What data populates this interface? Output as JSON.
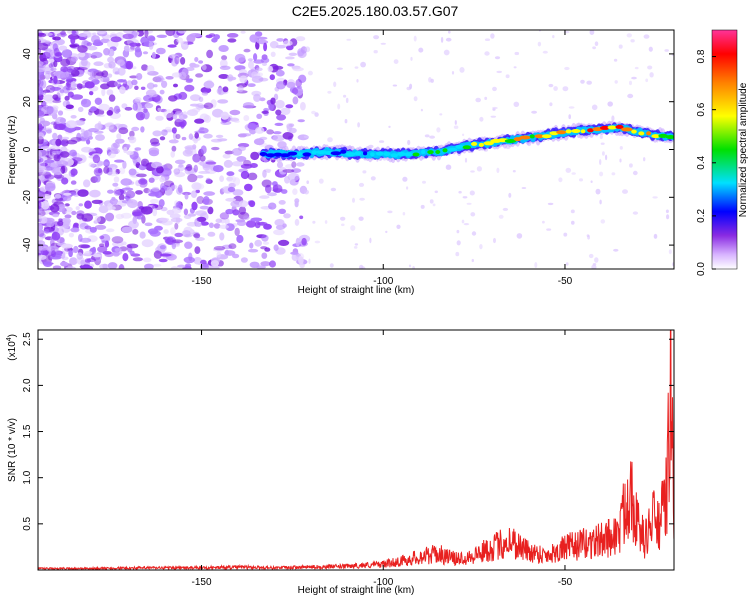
{
  "title": "C2E5.2025.180.03.57.G07",
  "chart_data": [
    {
      "type": "heatmap",
      "xlabel": "Height of straight line (km)",
      "ylabel": "Frequency (Hz)",
      "xlim": [
        -195,
        -20
      ],
      "ylim": [
        -50,
        50
      ],
      "xticks": [
        -150,
        -100,
        -50
      ],
      "yticks": [
        -40,
        -20,
        0,
        20,
        40
      ],
      "grid": false,
      "ridge": {
        "x": [
          -133,
          -125,
          -115,
          -105,
          -95,
          -85,
          -75,
          -65,
          -55,
          -45,
          -35,
          -25,
          -20
        ],
        "freq": [
          -2,
          -2,
          -1,
          -2,
          -2,
          -1,
          2,
          4,
          6,
          8,
          9,
          6,
          5
        ],
        "amplitude": [
          0.25,
          0.35,
          0.45,
          0.4,
          0.45,
          0.55,
          0.65,
          0.75,
          0.8,
          0.9,
          0.85,
          0.9,
          0.4
        ]
      },
      "colorbar": {
        "label": "Normalized spectral amplitude",
        "range": [
          0,
          0.9
        ],
        "ticks": [
          "0.0",
          "0.2",
          "0.4",
          "0.6",
          "0.8"
        ]
      }
    },
    {
      "type": "line",
      "xlabel": "Height of straight line (km)",
      "ylabel": "SNR (10 * v/v)",
      "multiplier": "(x10",
      "multiplier_exp": "4",
      "xlim": [
        -195,
        -20
      ],
      "ylim": [
        0,
        2.6
      ],
      "xticks": [
        -150,
        -100,
        -50
      ],
      "yticks": [
        0.5,
        1.0,
        1.5,
        2.0,
        2.5
      ],
      "ytick_labels": [
        "0.5",
        "1.0",
        "1.5",
        "2.0",
        "2.5"
      ],
      "series": [
        {
          "color": "#e8201f",
          "x": [
            -195,
            -180,
            -165,
            -150,
            -140,
            -130,
            -120,
            -110,
            -100,
            -95,
            -90,
            -85,
            -80,
            -75,
            -70,
            -65,
            -60,
            -55,
            -50,
            -45,
            -40,
            -35,
            -32,
            -30,
            -28,
            -26,
            -24,
            -22,
            -21,
            -20
          ],
          "y": [
            0.02,
            0.02,
            0.03,
            0.03,
            0.04,
            0.03,
            0.04,
            0.05,
            0.08,
            0.12,
            0.18,
            0.22,
            0.15,
            0.2,
            0.3,
            0.4,
            0.25,
            0.2,
            0.3,
            0.35,
            0.4,
            0.5,
            1.2,
            0.6,
            0.4,
            0.7,
            0.6,
            1.0,
            2.6,
            0.8
          ]
        }
      ]
    }
  ]
}
